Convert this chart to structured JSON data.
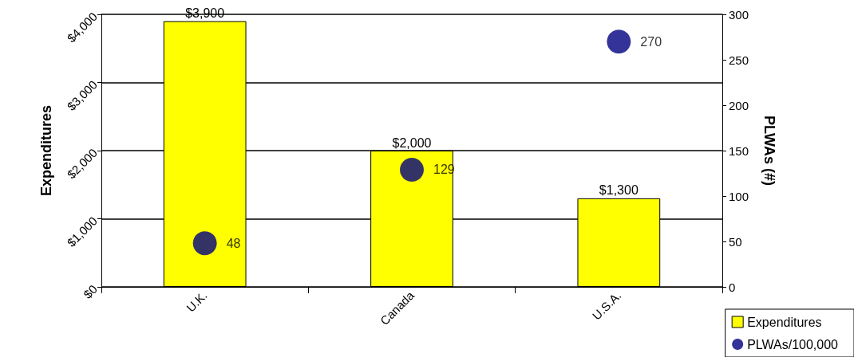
{
  "chart_data": {
    "type": "bar",
    "ylabel": "Expenditures",
    "y2label": "PLWAs (#)",
    "categories": [
      "U.K.",
      "Canada",
      "U.S.A."
    ],
    "series": [
      {
        "name": "Expenditures",
        "color": "#ffff00",
        "values": [
          3900,
          2000,
          1300
        ],
        "value_labels": [
          "$3,900",
          "$2,000",
          "$1,300"
        ]
      },
      {
        "name": "PLWAs/100,000",
        "type": "scatter",
        "axis": "y2",
        "color": "#000080",
        "values": [
          48,
          129,
          270
        ],
        "value_labels": [
          "48",
          "129",
          "270"
        ]
      }
    ],
    "ylim": [
      0,
      4000
    ],
    "yticks": [
      {
        "value": 0,
        "label": "$0"
      },
      {
        "value": 1000,
        "label": "$1,000"
      },
      {
        "value": 2000,
        "label": "$2,000"
      },
      {
        "value": 3000,
        "label": "$3,000"
      },
      {
        "value": 4000,
        "label": "$4,000"
      }
    ],
    "y2lim": [
      0,
      300
    ],
    "y2ticks": [
      0,
      50,
      100,
      150,
      200,
      250,
      300
    ],
    "grid": "y",
    "legend": "bottom right",
    "marker": "circle"
  }
}
